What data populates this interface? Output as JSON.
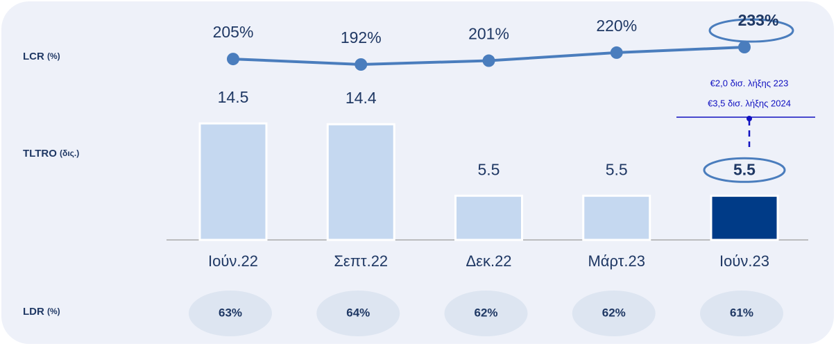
{
  "chart_data": [
    {
      "type": "line",
      "label": "LCR",
      "unit": "(%)",
      "values": [
        205,
        192,
        201,
        220,
        233
      ],
      "value_labels": [
        "205%",
        "192%",
        "201%",
        "220%",
        "233%"
      ],
      "color": "#4a7dbd",
      "highlight": 4
    },
    {
      "type": "bar",
      "label": "TLTRO",
      "unit": "(δις.)",
      "categories": [
        "Ιούν.22",
        "Σεπτ.22",
        "Δεκ.22",
        "Μάρτ.23",
        "Ιούν.23"
      ],
      "values": [
        14.5,
        14.4,
        5.5,
        5.5,
        5.5
      ],
      "colors": [
        "#c5d8f0",
        "#c5d8f0",
        "#c5d8f0",
        "#c5d8f0",
        "#003b87"
      ],
      "highlight": 4,
      "annotations": [
        "€2,0 δισ. λήξης 223",
        "€3,5 δισ. λήξης 2024"
      ]
    },
    {
      "type": "bubble",
      "label": "LDR",
      "unit": "(%)",
      "values": [
        63,
        64,
        62,
        62,
        61
      ],
      "value_labels": [
        "63%",
        "64%",
        "62%",
        "62%",
        "61%"
      ],
      "color": "#dde5f1"
    }
  ]
}
